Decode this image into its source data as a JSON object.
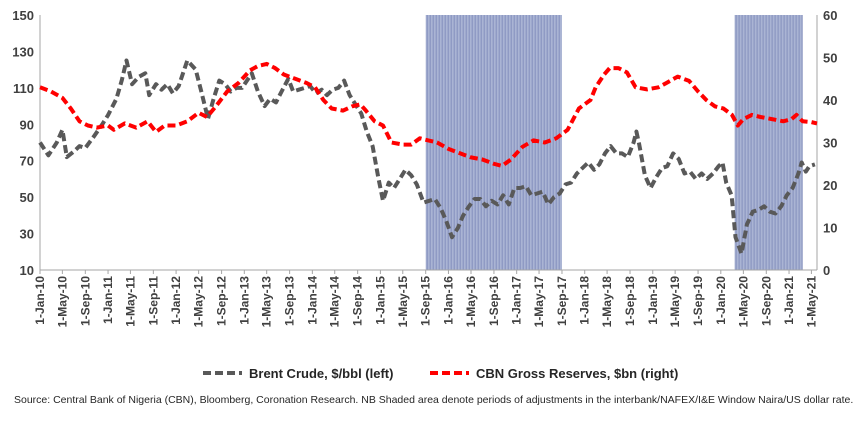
{
  "chart_data": {
    "type": "line",
    "x_range": [
      "2010-01-01",
      "2021-05-31"
    ],
    "x_tick_labels": [
      "1-Jan-10",
      "1-May-10",
      "1-Sep-10",
      "1-Jan-11",
      "1-May-11",
      "1-Sep-11",
      "1-Jan-12",
      "1-May-12",
      "1-Sep-12",
      "1-Jan-13",
      "1-May-13",
      "1-Sep-13",
      "1-Jan-14",
      "1-May-14",
      "1-Sep-14",
      "1-Jan-15",
      "1-May-15",
      "1-Sep-15",
      "1-Jan-16",
      "1-May-16",
      "1-Sep-16",
      "1-Jan-17",
      "1-May-17",
      "1-Sep-17",
      "1-Jan-18",
      "1-May-18",
      "1-Sep-18",
      "1-Jan-19",
      "1-May-19",
      "1-Sep-19",
      "1-Jan-20",
      "1-May-20",
      "1-Sep-20",
      "1-Jan-21",
      "1-May-21"
    ],
    "y_left": {
      "ylim": [
        10,
        150
      ],
      "ticks": [
        10,
        30,
        50,
        70,
        90,
        110,
        130,
        150
      ]
    },
    "y_right": {
      "ylim": [
        0,
        60
      ],
      "ticks": [
        0,
        10,
        20,
        30,
        40,
        50,
        60
      ]
    },
    "shaded_periods": [
      {
        "start": "2015-09-01",
        "end": "2017-09-01"
      },
      {
        "start": "2020-03-15",
        "end": "2021-03-15"
      }
    ],
    "grid": false,
    "legend_position": "bottom",
    "series": [
      {
        "name": "Brent Crude, $/bbl (left)",
        "axis": "left",
        "color": "#595959",
        "style": "dashed",
        "points": [
          [
            "2010-01-01",
            80
          ],
          [
            "2010-02-15",
            73
          ],
          [
            "2010-04-01",
            80
          ],
          [
            "2010-05-01",
            87
          ],
          [
            "2010-05-25",
            72
          ],
          [
            "2010-07-01",
            75
          ],
          [
            "2010-08-01",
            78
          ],
          [
            "2010-09-01",
            77
          ],
          [
            "2010-10-15",
            83
          ],
          [
            "2010-12-01",
            90
          ],
          [
            "2011-01-01",
            95
          ],
          [
            "2011-02-15",
            104
          ],
          [
            "2011-03-15",
            114
          ],
          [
            "2011-04-10",
            125
          ],
          [
            "2011-05-10",
            112
          ],
          [
            "2011-06-15",
            116
          ],
          [
            "2011-07-20",
            118
          ],
          [
            "2011-08-10",
            106
          ],
          [
            "2011-09-15",
            112
          ],
          [
            "2011-10-15",
            109
          ],
          [
            "2011-11-15",
            112
          ],
          [
            "2011-12-15",
            107
          ],
          [
            "2012-01-15",
            111
          ],
          [
            "2012-03-01",
            125
          ],
          [
            "2012-04-15",
            120
          ],
          [
            "2012-05-15",
            108
          ],
          [
            "2012-06-20",
            93
          ],
          [
            "2012-07-20",
            104
          ],
          [
            "2012-08-20",
            114
          ],
          [
            "2012-09-20",
            112
          ],
          [
            "2012-10-20",
            108
          ],
          [
            "2012-11-20",
            110
          ],
          [
            "2012-12-20",
            110
          ],
          [
            "2013-02-10",
            118
          ],
          [
            "2013-03-15",
            108
          ],
          [
            "2013-04-20",
            100
          ],
          [
            "2013-05-20",
            104
          ],
          [
            "2013-06-20",
            102
          ],
          [
            "2013-07-20",
            108
          ],
          [
            "2013-08-25",
            115
          ],
          [
            "2013-09-20",
            108
          ],
          [
            "2013-10-20",
            109
          ],
          [
            "2013-11-20",
            110
          ],
          [
            "2013-12-20",
            111
          ],
          [
            "2014-01-20",
            107
          ],
          [
            "2014-02-20",
            109
          ],
          [
            "2014-03-20",
            106
          ],
          [
            "2014-04-20",
            109
          ],
          [
            "2014-05-20",
            110
          ],
          [
            "2014-06-20",
            114
          ],
          [
            "2014-07-20",
            106
          ],
          [
            "2014-08-20",
            101
          ],
          [
            "2014-09-20",
            96
          ],
          [
            "2014-10-20",
            86
          ],
          [
            "2014-11-20",
            78
          ],
          [
            "2014-12-20",
            61
          ],
          [
            "2015-01-15",
            48
          ],
          [
            "2015-02-15",
            58
          ],
          [
            "2015-03-15",
            55
          ],
          [
            "2015-04-15",
            60
          ],
          [
            "2015-05-15",
            65
          ],
          [
            "2015-06-15",
            62
          ],
          [
            "2015-07-15",
            57
          ],
          [
            "2015-08-20",
            47
          ],
          [
            "2015-09-20",
            48
          ],
          [
            "2015-10-20",
            49
          ],
          [
            "2015-11-20",
            44
          ],
          [
            "2015-12-20",
            37
          ],
          [
            "2016-01-20",
            28
          ],
          [
            "2016-02-20",
            33
          ],
          [
            "2016-03-20",
            40
          ],
          [
            "2016-04-20",
            45
          ],
          [
            "2016-05-20",
            49
          ],
          [
            "2016-06-20",
            49
          ],
          [
            "2016-07-20",
            45
          ],
          [
            "2016-08-20",
            48
          ],
          [
            "2016-09-20",
            46
          ],
          [
            "2016-10-20",
            51
          ],
          [
            "2016-11-20",
            46
          ],
          [
            "2016-12-20",
            55
          ],
          [
            "2017-01-20",
            55
          ],
          [
            "2017-02-20",
            56
          ],
          [
            "2017-03-20",
            51
          ],
          [
            "2017-04-20",
            52
          ],
          [
            "2017-05-20",
            53
          ],
          [
            "2017-06-20",
            46
          ],
          [
            "2017-07-20",
            50
          ],
          [
            "2017-08-20",
            52
          ],
          [
            "2017-09-20",
            57
          ],
          [
            "2017-10-20",
            58
          ],
          [
            "2017-11-20",
            63
          ],
          [
            "2017-12-20",
            66
          ],
          [
            "2018-01-20",
            69
          ],
          [
            "2018-02-20",
            65
          ],
          [
            "2018-03-20",
            68
          ],
          [
            "2018-04-20",
            74
          ],
          [
            "2018-05-20",
            78
          ],
          [
            "2018-06-20",
            74
          ],
          [
            "2018-07-20",
            74
          ],
          [
            "2018-08-20",
            72
          ],
          [
            "2018-09-20",
            80
          ],
          [
            "2018-10-05",
            86
          ],
          [
            "2018-10-20",
            79
          ],
          [
            "2018-11-20",
            62
          ],
          [
            "2018-12-20",
            55
          ],
          [
            "2019-01-20",
            61
          ],
          [
            "2019-02-20",
            66
          ],
          [
            "2019-03-20",
            67
          ],
          [
            "2019-04-20",
            74
          ],
          [
            "2019-05-20",
            71
          ],
          [
            "2019-06-20",
            63
          ],
          [
            "2019-07-20",
            64
          ],
          [
            "2019-08-20",
            60
          ],
          [
            "2019-09-20",
            63
          ],
          [
            "2019-10-20",
            60
          ],
          [
            "2019-11-20",
            63
          ],
          [
            "2019-12-20",
            67
          ],
          [
            "2020-01-10",
            69
          ],
          [
            "2020-01-30",
            58
          ],
          [
            "2020-02-28",
            51
          ],
          [
            "2020-03-20",
            28
          ],
          [
            "2020-04-21",
            19
          ],
          [
            "2020-05-20",
            35
          ],
          [
            "2020-06-20",
            42
          ],
          [
            "2020-07-20",
            43
          ],
          [
            "2020-08-20",
            45
          ],
          [
            "2020-09-20",
            42
          ],
          [
            "2020-10-20",
            41
          ],
          [
            "2020-11-20",
            45
          ],
          [
            "2020-12-20",
            51
          ],
          [
            "2021-01-20",
            55
          ],
          [
            "2021-02-20",
            63
          ],
          [
            "2021-03-10",
            69
          ],
          [
            "2021-04-01",
            64
          ],
          [
            "2021-04-20",
            67
          ],
          [
            "2021-05-20",
            68
          ]
        ]
      },
      {
        "name": "CBN Gross Reserves, $bn (right)",
        "axis": "right",
        "color": "#ff0000",
        "style": "dashed",
        "points": [
          [
            "2010-01-01",
            43
          ],
          [
            "2010-03-01",
            42
          ],
          [
            "2010-05-01",
            40.5
          ],
          [
            "2010-06-15",
            38
          ],
          [
            "2010-08-01",
            35
          ],
          [
            "2010-09-15",
            34
          ],
          [
            "2010-11-01",
            33.5
          ],
          [
            "2011-01-01",
            34
          ],
          [
            "2011-02-01",
            33
          ],
          [
            "2011-04-01",
            34.5
          ],
          [
            "2011-06-01",
            33.5
          ],
          [
            "2011-08-01",
            35
          ],
          [
            "2011-09-15",
            32.5
          ],
          [
            "2011-11-01",
            34
          ],
          [
            "2012-01-01",
            34
          ],
          [
            "2012-03-01",
            35
          ],
          [
            "2012-05-01",
            37
          ],
          [
            "2012-06-15",
            36
          ],
          [
            "2012-08-01",
            38.5
          ],
          [
            "2012-10-01",
            42
          ],
          [
            "2012-12-01",
            44
          ],
          [
            "2013-02-01",
            47
          ],
          [
            "2013-03-15",
            48
          ],
          [
            "2013-05-01",
            48.5
          ],
          [
            "2013-06-15",
            47.5
          ],
          [
            "2013-08-01",
            46
          ],
          [
            "2013-10-01",
            45
          ],
          [
            "2013-12-01",
            44
          ],
          [
            "2014-01-15",
            43
          ],
          [
            "2014-03-01",
            40
          ],
          [
            "2014-04-15",
            38
          ],
          [
            "2014-06-15",
            37.5
          ],
          [
            "2014-08-01",
            38.5
          ],
          [
            "2014-09-15",
            39
          ],
          [
            "2014-10-15",
            37.5
          ],
          [
            "2014-12-01",
            35
          ],
          [
            "2015-01-15",
            34
          ],
          [
            "2015-03-01",
            30
          ],
          [
            "2015-05-01",
            29.5
          ],
          [
            "2015-06-15",
            29.5
          ],
          [
            "2015-08-01",
            31
          ],
          [
            "2015-09-15",
            30.5
          ],
          [
            "2015-11-01",
            30
          ],
          [
            "2016-01-01",
            28.5
          ],
          [
            "2016-03-01",
            27.5
          ],
          [
            "2016-05-01",
            26.5
          ],
          [
            "2016-07-01",
            26
          ],
          [
            "2016-09-01",
            25
          ],
          [
            "2016-10-15",
            24.5
          ],
          [
            "2016-12-01",
            26
          ],
          [
            "2017-02-01",
            29
          ],
          [
            "2017-04-01",
            30.5
          ],
          [
            "2017-06-01",
            30
          ],
          [
            "2017-08-01",
            31
          ],
          [
            "2017-10-01",
            33
          ],
          [
            "2017-12-01",
            38
          ],
          [
            "2018-02-01",
            40
          ],
          [
            "2018-03-01",
            43
          ],
          [
            "2018-04-15",
            46
          ],
          [
            "2018-05-15",
            47.5
          ],
          [
            "2018-07-01",
            47.5
          ],
          [
            "2018-08-15",
            46.5
          ],
          [
            "2018-10-01",
            43
          ],
          [
            "2018-12-01",
            42.5
          ],
          [
            "2019-02-01",
            43
          ],
          [
            "2019-03-15",
            44
          ],
          [
            "2019-05-15",
            45.5
          ],
          [
            "2019-07-15",
            44.5
          ],
          [
            "2019-09-01",
            42
          ],
          [
            "2019-10-15",
            40
          ],
          [
            "2019-12-01",
            38.5
          ],
          [
            "2020-01-15",
            38
          ],
          [
            "2020-03-01",
            36.5
          ],
          [
            "2020-04-01",
            34
          ],
          [
            "2020-05-01",
            35.5
          ],
          [
            "2020-06-15",
            36.5
          ],
          [
            "2020-08-01",
            36
          ],
          [
            "2020-10-01",
            35.5
          ],
          [
            "2020-12-01",
            35
          ],
          [
            "2021-01-15",
            35.5
          ],
          [
            "2021-02-10",
            36.5
          ],
          [
            "2021-03-15",
            35
          ],
          [
            "2021-05-01",
            34.8
          ],
          [
            "2021-05-31",
            34.5
          ]
        ]
      }
    ]
  },
  "source_note": "Source:  Central Bank of Nigeria (CBN), Bloomberg, Coronation Research.  NB Shaded area denote periods of adjustments in the interbank/NAFEX/I&E Window Naira/US dollar rate."
}
